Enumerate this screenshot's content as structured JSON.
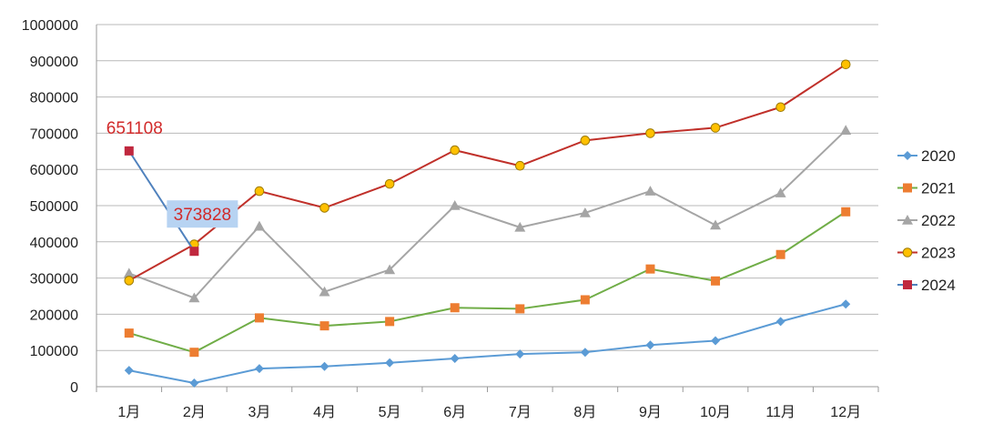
{
  "chart_data": {
    "type": "line",
    "title": "",
    "xlabel": "",
    "ylabel": "",
    "categories": [
      "1月",
      "2月",
      "3月",
      "4月",
      "5月",
      "6月",
      "7月",
      "8月",
      "9月",
      "10月",
      "11月",
      "12月"
    ],
    "ylim": [
      0,
      1000000
    ],
    "yticks": [
      0,
      100000,
      200000,
      300000,
      400000,
      500000,
      600000,
      700000,
      800000,
      900000,
      1000000
    ],
    "grid": true,
    "legend_position": "right",
    "series": [
      {
        "name": "2020",
        "color": "#5b9bd5",
        "marker": "diamond",
        "values": [
          45000,
          10000,
          50000,
          56000,
          66000,
          78000,
          90000,
          95000,
          115000,
          127000,
          180000,
          228000
        ]
      },
      {
        "name": "2021",
        "color": "#ed7d31",
        "line_color": "#70ad47",
        "marker": "square",
        "values": [
          148000,
          95000,
          190000,
          168000,
          180000,
          218000,
          215000,
          240000,
          325000,
          292000,
          365000,
          483000
        ]
      },
      {
        "name": "2022",
        "color": "#a5a5a5",
        "marker": "triangle",
        "values": [
          313000,
          245000,
          443000,
          262000,
          323000,
          500000,
          440000,
          480000,
          540000,
          446000,
          535000,
          708000
        ]
      },
      {
        "name": "2023",
        "color": "#ffc000",
        "line_color": "#c0302a",
        "marker": "circle",
        "values": [
          293000,
          393000,
          540000,
          494000,
          560000,
          653000,
          610000,
          680000,
          700000,
          715000,
          772000,
          890000
        ]
      },
      {
        "name": "2024",
        "color": "#c0283e",
        "line_color": "#4f81bd",
        "marker": "square",
        "values": [
          651108,
          373828,
          null,
          null,
          null,
          null,
          null,
          null,
          null,
          null,
          null,
          null
        ]
      }
    ],
    "annotations": [
      {
        "series": "2024",
        "index": 0,
        "text": "651108",
        "highlight": false
      },
      {
        "series": "2024",
        "index": 1,
        "text": "373828",
        "highlight": true
      }
    ]
  }
}
